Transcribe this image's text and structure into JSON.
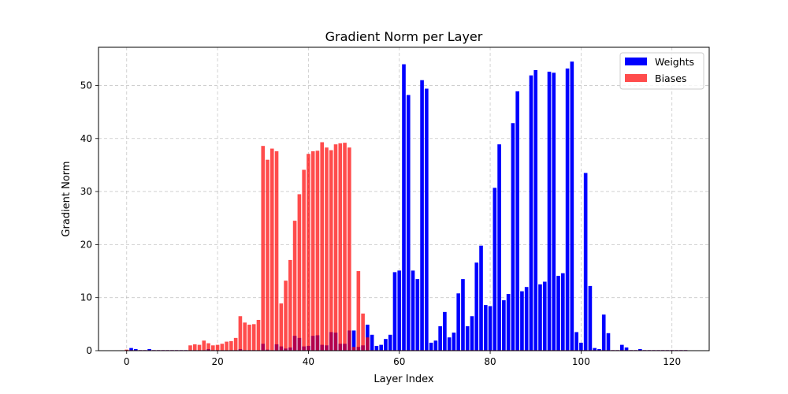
{
  "chart_data": {
    "type": "bar",
    "title": "Gradient Norm per Layer",
    "xlabel": "Layer Index",
    "ylabel": "Gradient Norm",
    "xlim": [
      -6.2,
      128.2
    ],
    "ylim": [
      0,
      57.2
    ],
    "xticks": [
      0,
      20,
      40,
      60,
      80,
      100,
      120
    ],
    "yticks": [
      0,
      10,
      20,
      30,
      40,
      50
    ],
    "grid": true,
    "legend": "top-right",
    "x": [
      0,
      1,
      2,
      3,
      4,
      5,
      6,
      7,
      8,
      9,
      10,
      11,
      12,
      13,
      14,
      15,
      16,
      17,
      18,
      19,
      20,
      21,
      22,
      23,
      24,
      25,
      26,
      27,
      28,
      29,
      30,
      31,
      32,
      33,
      34,
      35,
      36,
      37,
      38,
      39,
      40,
      41,
      42,
      43,
      44,
      45,
      46,
      47,
      48,
      49,
      50,
      51,
      52,
      53,
      54,
      55,
      56,
      57,
      58,
      59,
      60,
      61,
      62,
      63,
      64,
      65,
      66,
      67,
      68,
      69,
      70,
      71,
      72,
      73,
      74,
      75,
      76,
      77,
      78,
      79,
      80,
      81,
      82,
      83,
      84,
      85,
      86,
      87,
      88,
      89,
      90,
      91,
      92,
      93,
      94,
      95,
      96,
      97,
      98,
      99,
      100,
      101,
      102,
      103,
      104,
      105,
      106,
      107,
      108,
      109,
      110,
      111,
      112,
      113,
      114,
      115,
      116,
      117,
      118,
      119,
      120,
      121,
      122,
      123
    ],
    "series": [
      {
        "name": "Weights",
        "color": "#0000ff",
        "values": [
          0.1,
          0.5,
          0.3,
          0.1,
          0.1,
          0.3,
          0.1,
          0.1,
          0.1,
          0.1,
          0.1,
          0.1,
          0.1,
          0.1,
          0.1,
          0.1,
          0.1,
          0.1,
          0.3,
          0.1,
          0.1,
          0.1,
          0.1,
          0.1,
          0.1,
          0.3,
          0.1,
          0.1,
          0.1,
          0.1,
          1.3,
          0.2,
          0.1,
          1.2,
          0.8,
          0.4,
          0.6,
          2.8,
          2.4,
          0.8,
          0.9,
          2.8,
          2.9,
          1.1,
          1.0,
          3.5,
          3.4,
          1.3,
          1.3,
          3.8,
          3.8,
          0.7,
          1.0,
          4.9,
          3.0,
          0.9,
          1.1,
          2.2,
          3.0,
          14.8,
          15.1,
          54.0,
          48.2,
          15.1,
          13.5,
          51.0,
          49.4,
          1.5,
          1.9,
          4.6,
          7.3,
          2.5,
          3.4,
          10.8,
          13.5,
          4.6,
          6.5,
          16.6,
          19.8,
          8.6,
          8.4,
          30.7,
          38.9,
          9.5,
          10.7,
          42.9,
          48.9,
          11.2,
          12.0,
          51.9,
          52.9,
          12.5,
          13.0,
          52.6,
          52.4,
          14.1,
          14.6,
          53.2,
          54.5,
          3.5,
          1.5,
          33.5,
          12.2,
          0.5,
          0.3,
          6.8,
          3.3,
          0.1,
          0.1,
          1.1,
          0.6,
          0.1,
          0.1,
          0.3,
          0.1,
          0.1,
          0.1,
          0.1,
          0.1,
          0.1,
          0.1,
          0.1,
          0.1,
          0.1
        ]
      },
      {
        "name": "Biases",
        "color": "#ff0000",
        "values": [
          0.2,
          0.1,
          0.1,
          0.1,
          0.1,
          0.1,
          0.1,
          0.1,
          0.1,
          0.1,
          0.1,
          0.1,
          0.1,
          0.1,
          1.0,
          1.2,
          1.1,
          1.9,
          1.4,
          1.0,
          1.1,
          1.3,
          1.7,
          1.8,
          2.4,
          6.5,
          5.3,
          4.9,
          5.0,
          5.8,
          38.6,
          36.0,
          38.1,
          37.6,
          8.9,
          13.2,
          17.1,
          24.5,
          29.5,
          34.1,
          37.1,
          37.6,
          37.7,
          39.3,
          38.3,
          37.8,
          38.9,
          39.1,
          39.2,
          38.3,
          0.7,
          15.0,
          7.0,
          2.5,
          0.1,
          0.1,
          0.1,
          0.1,
          0.1,
          0.1,
          0.1,
          0.1,
          0.1,
          0.1,
          0.1,
          0.1,
          0.1,
          0.1,
          0.1,
          0.1,
          0.1,
          0.1,
          0.1,
          0.1,
          0.1,
          0.1,
          0.1,
          0.1,
          0.1,
          0.1,
          0.1,
          0.1,
          0.1,
          0.1,
          0.1,
          0.1,
          0.1,
          0.1,
          0.1,
          0.1,
          0.1,
          0.1,
          0.1,
          0.1,
          0.1,
          0.1,
          0.1,
          0.1,
          0.1,
          0.1,
          0.1,
          0.1,
          0.1,
          0.1,
          0.1,
          0.1,
          0.1,
          0.1,
          0.1,
          0.1,
          0.1,
          0.1,
          0.1,
          0.1,
          0.1,
          0.1,
          0.1,
          0.1,
          0.1,
          0.1,
          0.1,
          0.1,
          0.1,
          0.1
        ]
      }
    ]
  }
}
